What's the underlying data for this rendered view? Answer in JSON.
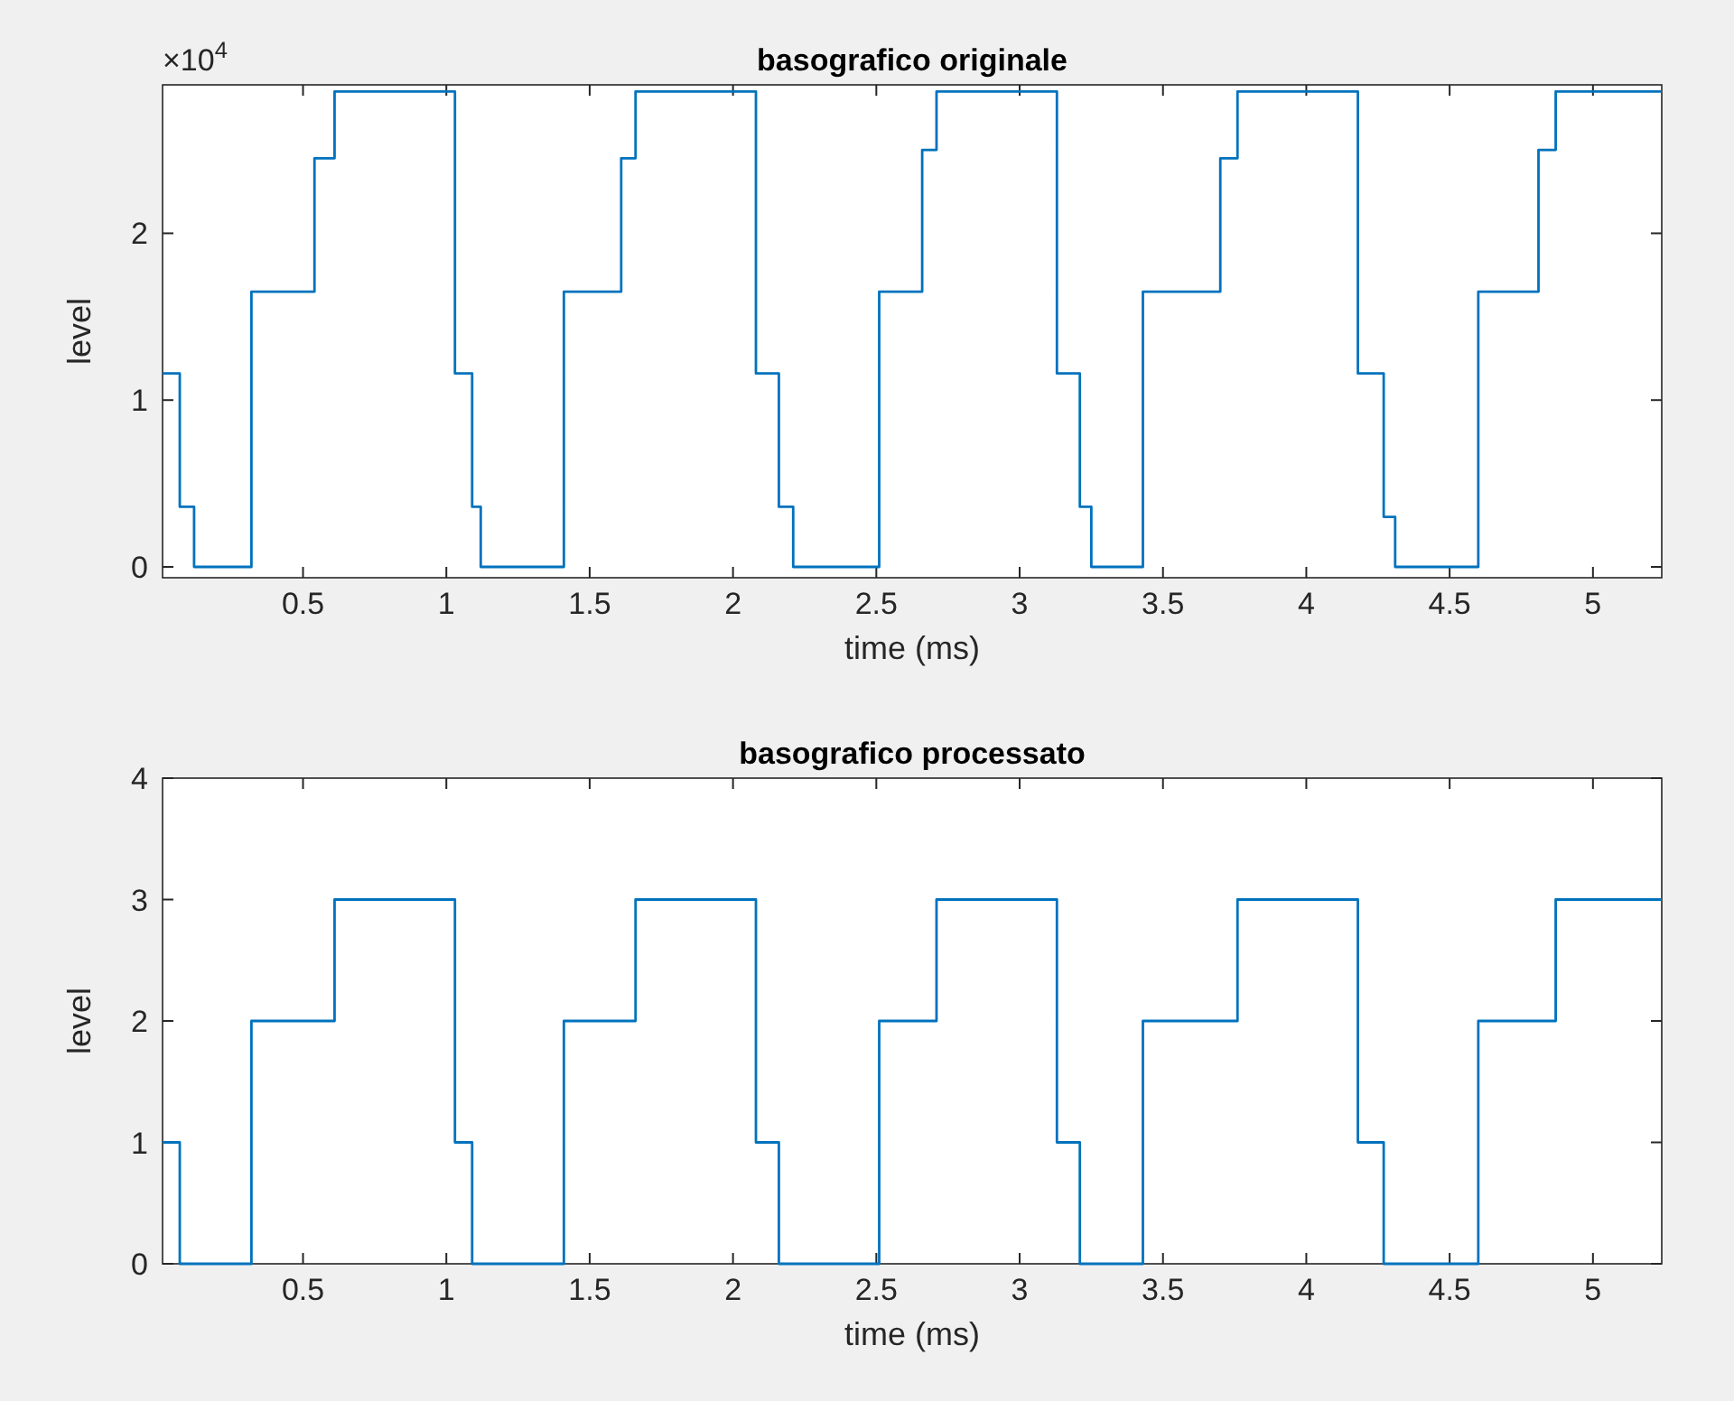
{
  "chart_data": [
    {
      "type": "step",
      "title": "basografico originale",
      "xlabel": "time (ms)",
      "ylabel": "level",
      "annotations": [
        "×10$^{4}$"
      ],
      "xlim": [
        0.01,
        5.24
      ],
      "xticks": [
        0.5,
        1,
        1.5,
        2,
        2.5,
        3,
        3.5,
        4,
        4.5,
        5
      ],
      "ylim": [
        -0.065,
        2.89
      ],
      "yticks": [
        0,
        1,
        2
      ],
      "series": [
        {
          "color": "#0072bd",
          "x": [
            0.01,
            0.07,
            0.12,
            0.32,
            0.54,
            0.61,
            1.03,
            1.09,
            1.12,
            1.41,
            1.61,
            1.66,
            2.08,
            2.16,
            2.21,
            2.51,
            2.66,
            2.71,
            3.13,
            3.21,
            3.25,
            3.43,
            3.7,
            3.76,
            4.18,
            4.27,
            4.31,
            4.6,
            4.81,
            4.87,
            5.24
          ],
          "values": [
            1.16,
            0.36,
            0,
            1.65,
            2.45,
            2.85,
            1.16,
            0.36,
            0,
            1.65,
            2.45,
            2.85,
            1.16,
            0.36,
            0,
            1.65,
            2.5,
            2.85,
            1.16,
            0.36,
            0,
            1.65,
            2.45,
            2.85,
            1.16,
            0.3,
            0,
            1.65,
            2.5,
            2.85,
            2.85
          ]
        }
      ]
    },
    {
      "type": "step",
      "title": "basografico processato",
      "xlabel": "time (ms)",
      "ylabel": "level",
      "xlim": [
        0.01,
        5.24
      ],
      "xticks": [
        0.5,
        1,
        1.5,
        2,
        2.5,
        3,
        3.5,
        4,
        4.5,
        5
      ],
      "ylim": [
        0,
        4
      ],
      "yticks": [
        0,
        1,
        2,
        3,
        4
      ],
      "series": [
        {
          "color": "#0072bd",
          "x": [
            0.01,
            0.07,
            0.32,
            0.61,
            1.03,
            1.09,
            1.41,
            1.66,
            2.08,
            2.16,
            2.51,
            2.71,
            3.13,
            3.21,
            3.43,
            3.76,
            4.18,
            4.27,
            4.6,
            4.87,
            5.24
          ],
          "values": [
            1,
            0,
            2,
            3,
            1,
            0,
            2,
            3,
            1,
            0,
            2,
            3,
            1,
            0,
            2,
            3,
            1,
            0,
            2,
            3,
            3
          ]
        }
      ]
    }
  ]
}
